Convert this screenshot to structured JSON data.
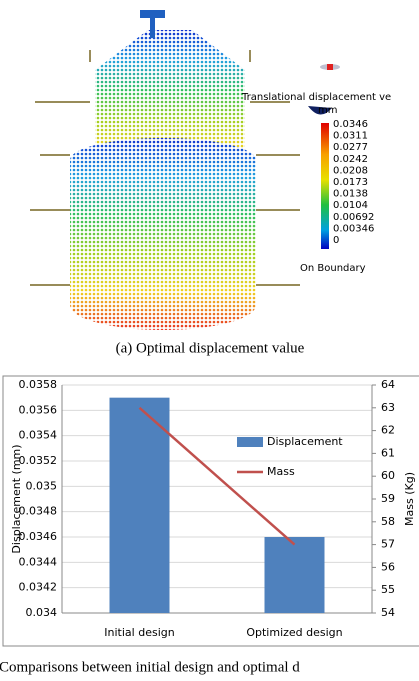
{
  "figure_a": {
    "legend": {
      "title": "Translational displacement ve",
      "unit": "mm",
      "labels": [
        "0.0346",
        "0.0311",
        "0.0277",
        "0.0242",
        "0.0208",
        "0.0173",
        "0.0138",
        "0.0104",
        "0.00692",
        "0.00346",
        "0"
      ],
      "footer": "On Boundary"
    },
    "caption": "(a) Optimal displacement value"
  },
  "chart_data": {
    "type": "bar_line",
    "categories": [
      "Initial design",
      "Optimized design"
    ],
    "series": [
      {
        "name": "Displacement",
        "color": "#4f81bd",
        "type": "bar",
        "values": [
          0.0357,
          0.0346
        ]
      },
      {
        "name": "Mass",
        "color": "#c0504d",
        "type": "line",
        "axis": "y2",
        "values": [
          63,
          57
        ]
      }
    ],
    "y_label": "Displacement (mm)",
    "y2_label": "Mass (Kg)",
    "ylim": [
      0.034,
      0.0358
    ],
    "yticks": [
      0.034,
      0.0342,
      0.0344,
      0.0346,
      0.0348,
      0.035,
      0.0352,
      0.0354,
      0.0356,
      0.0358
    ],
    "y2lim": [
      54,
      64
    ],
    "y2ticks": [
      54,
      55,
      56,
      57,
      58,
      59,
      60,
      61,
      62,
      63,
      64
    ],
    "grid": true,
    "legend": "upper right"
  },
  "caption_b": "Comparisons between initial design and optimal d"
}
